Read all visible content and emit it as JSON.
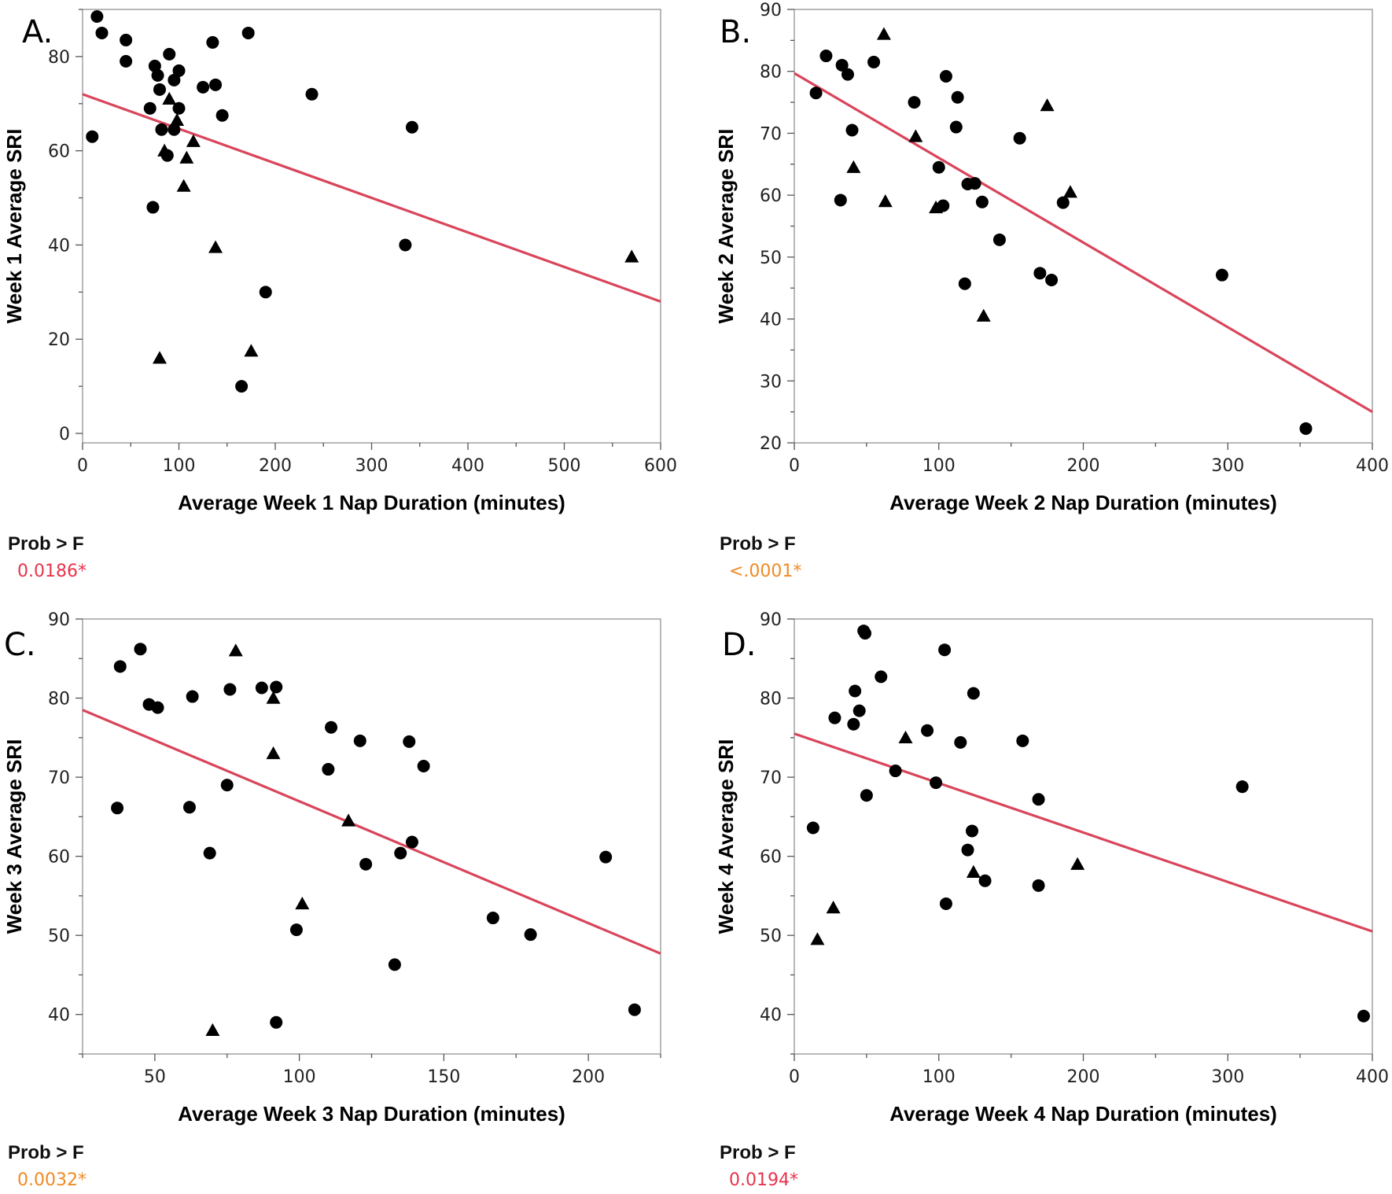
{
  "colors": {
    "fit_line": "#d9455b",
    "marker": "#000000",
    "frame": "#a0a0a0",
    "value_red": "#e8334a",
    "value_orange": "#f08a24"
  },
  "stats_label": "Prob > F",
  "chart_data": [
    {
      "id": "A",
      "type": "scatter",
      "panel_label": "A.",
      "xlabel": "Average Week 1 Nap Duration (minutes)",
      "ylabel": "Week 1 Average SRI",
      "xlim": [
        0,
        600
      ],
      "ylim": [
        -2,
        90
      ],
      "xticks": [
        0,
        100,
        200,
        300,
        400,
        500,
        600
      ],
      "yticks": [
        0,
        20,
        40,
        60,
        80
      ],
      "fit_line": {
        "x": [
          0,
          600
        ],
        "y": [
          72,
          28
        ]
      },
      "prob_f": "0.0186*",
      "prob_color": "#e8334a",
      "series": [
        {
          "name": "circle",
          "points": [
            [
              15,
              88.5
            ],
            [
              20,
              85
            ],
            [
              45,
              83.5
            ],
            [
              45,
              79
            ],
            [
              10,
              63
            ],
            [
              75,
              78
            ],
            [
              78,
              76
            ],
            [
              80,
              73
            ],
            [
              70,
              69
            ],
            [
              90,
              80.5
            ],
            [
              95,
              75
            ],
            [
              100,
              77
            ],
            [
              125,
              73.5
            ],
            [
              138,
              74
            ],
            [
              135,
              83
            ],
            [
              145,
              67.5
            ],
            [
              172,
              85
            ],
            [
              238,
              72
            ],
            [
              342,
              65
            ],
            [
              82,
              64.5
            ],
            [
              95,
              64.5
            ],
            [
              88,
              59
            ],
            [
              100,
              69
            ],
            [
              73,
              48
            ],
            [
              335,
              40
            ],
            [
              190,
              30
            ],
            [
              165,
              10
            ]
          ]
        },
        {
          "name": "triangle",
          "points": [
            [
              90,
              71
            ],
            [
              98,
              66.5
            ],
            [
              115,
              62
            ],
            [
              85,
              60
            ],
            [
              108,
              58.5
            ],
            [
              105,
              52.5
            ],
            [
              138,
              39.5
            ],
            [
              80,
              16
            ],
            [
              175,
              17.5
            ],
            [
              570,
              37.5
            ]
          ]
        }
      ]
    },
    {
      "id": "B",
      "type": "scatter",
      "panel_label": "B.",
      "xlabel": "Average Week 2 Nap Duration (minutes)",
      "ylabel": "Week 2 Average SRI",
      "xlim": [
        0,
        400
      ],
      "ylim": [
        20,
        90
      ],
      "xticks": [
        0,
        100,
        200,
        300,
        400
      ],
      "yticks": [
        20,
        30,
        40,
        50,
        60,
        70,
        80,
        90
      ],
      "fit_line": {
        "x": [
          0,
          400
        ],
        "y": [
          79.7,
          25
        ]
      },
      "prob_f": "<.0001*",
      "prob_color": "#f08a24",
      "series": [
        {
          "name": "circle",
          "points": [
            [
              15,
              76.5
            ],
            [
              22,
              82.5
            ],
            [
              33,
              81
            ],
            [
              37,
              79.5
            ],
            [
              55,
              81.5
            ],
            [
              40,
              70.5
            ],
            [
              32,
              59.2
            ],
            [
              83,
              75
            ],
            [
              100,
              64.5
            ],
            [
              103,
              58.3
            ],
            [
              105,
              79.2
            ],
            [
              113,
              75.8
            ],
            [
              112,
              71
            ],
            [
              120,
              61.8
            ],
            [
              125,
              61.9
            ],
            [
              130,
              58.9
            ],
            [
              142,
              52.8
            ],
            [
              118,
              45.7
            ],
            [
              156,
              69.2
            ],
            [
              170,
              47.4
            ],
            [
              178,
              46.3
            ],
            [
              186,
              58.8
            ],
            [
              296,
              47.1
            ],
            [
              354,
              22.3
            ]
          ]
        },
        {
          "name": "triangle",
          "points": [
            [
              62,
              86
            ],
            [
              41,
              64.5
            ],
            [
              63,
              59
            ],
            [
              84,
              69.5
            ],
            [
              98,
              58
            ],
            [
              175,
              74.5
            ],
            [
              191,
              60.5
            ],
            [
              131,
              40.5
            ]
          ]
        }
      ]
    },
    {
      "id": "C",
      "type": "scatter",
      "panel_label": "C.",
      "xlabel": "Average Week 3 Nap Duration (minutes)",
      "ylabel": "Week 3 Average SRI",
      "xlim": [
        25,
        225
      ],
      "ylim": [
        35,
        90
      ],
      "xticks": [
        50,
        100,
        150,
        200
      ],
      "yticks": [
        40,
        50,
        60,
        70,
        80,
        90
      ],
      "fit_line": {
        "x": [
          25,
          225
        ],
        "y": [
          78.5,
          47.7
        ]
      },
      "prob_f": "0.0032*",
      "prob_color": "#f08a24",
      "series": [
        {
          "name": "circle",
          "points": [
            [
              38,
              84
            ],
            [
              45,
              86.2
            ],
            [
              48,
              79.2
            ],
            [
              51,
              78.8
            ],
            [
              63,
              80.2
            ],
            [
              37,
              66.1
            ],
            [
              62,
              66.2
            ],
            [
              69,
              60.4
            ],
            [
              75,
              69
            ],
            [
              76,
              81.1
            ],
            [
              87,
              81.3
            ],
            [
              92,
              81.4
            ],
            [
              111,
              76.3
            ],
            [
              121,
              74.6
            ],
            [
              110,
              71
            ],
            [
              123,
              59
            ],
            [
              135,
              60.4
            ],
            [
              138,
              74.5
            ],
            [
              139,
              61.8
            ],
            [
              143,
              71.4
            ],
            [
              99,
              50.7
            ],
            [
              92,
              39
            ],
            [
              133,
              46.3
            ],
            [
              167,
              52.2
            ],
            [
              180,
              50.1
            ],
            [
              206,
              59.9
            ],
            [
              216,
              40.6
            ]
          ]
        },
        {
          "name": "triangle",
          "points": [
            [
              78,
              86
            ],
            [
              91,
              80
            ],
            [
              91,
              73
            ],
            [
              117,
              64.5
            ],
            [
              101,
              54
            ],
            [
              70,
              38
            ]
          ]
        }
      ]
    },
    {
      "id": "D",
      "type": "scatter",
      "panel_label": "D.",
      "xlabel": "Average Week 4 Nap Duration (minutes)",
      "ylabel": "Week 4 Average SRI",
      "xlim": [
        0,
        400
      ],
      "ylim": [
        35,
        90
      ],
      "xticks": [
        0,
        100,
        200,
        300,
        400
      ],
      "yticks": [
        40,
        50,
        60,
        70,
        80,
        90
      ],
      "fit_line": {
        "x": [
          0,
          400
        ],
        "y": [
          75.5,
          50.5
        ]
      },
      "prob_f": "0.0194*",
      "prob_color": "#e8334a",
      "series": [
        {
          "name": "circle",
          "points": [
            [
              48,
              88.5
            ],
            [
              49,
              88.2
            ],
            [
              60,
              82.7
            ],
            [
              42,
              80.9
            ],
            [
              45,
              78.4
            ],
            [
              28,
              77.5
            ],
            [
              41,
              76.7
            ],
            [
              104,
              86.1
            ],
            [
              124,
              80.6
            ],
            [
              92,
              75.9
            ],
            [
              115,
              74.4
            ],
            [
              158,
              74.6
            ],
            [
              70,
              70.8
            ],
            [
              98,
              69.3
            ],
            [
              50,
              67.7
            ],
            [
              13,
              63.6
            ],
            [
              123,
              63.2
            ],
            [
              120,
              60.8
            ],
            [
              132,
              56.9
            ],
            [
              105,
              54
            ],
            [
              169,
              67.2
            ],
            [
              169,
              56.3
            ],
            [
              310,
              68.8
            ],
            [
              394,
              39.8
            ]
          ]
        },
        {
          "name": "triangle",
          "points": [
            [
              77,
              75
            ],
            [
              124,
              58
            ],
            [
              196,
              59
            ],
            [
              27,
              53.5
            ],
            [
              16,
              49.5
            ]
          ]
        }
      ]
    }
  ]
}
